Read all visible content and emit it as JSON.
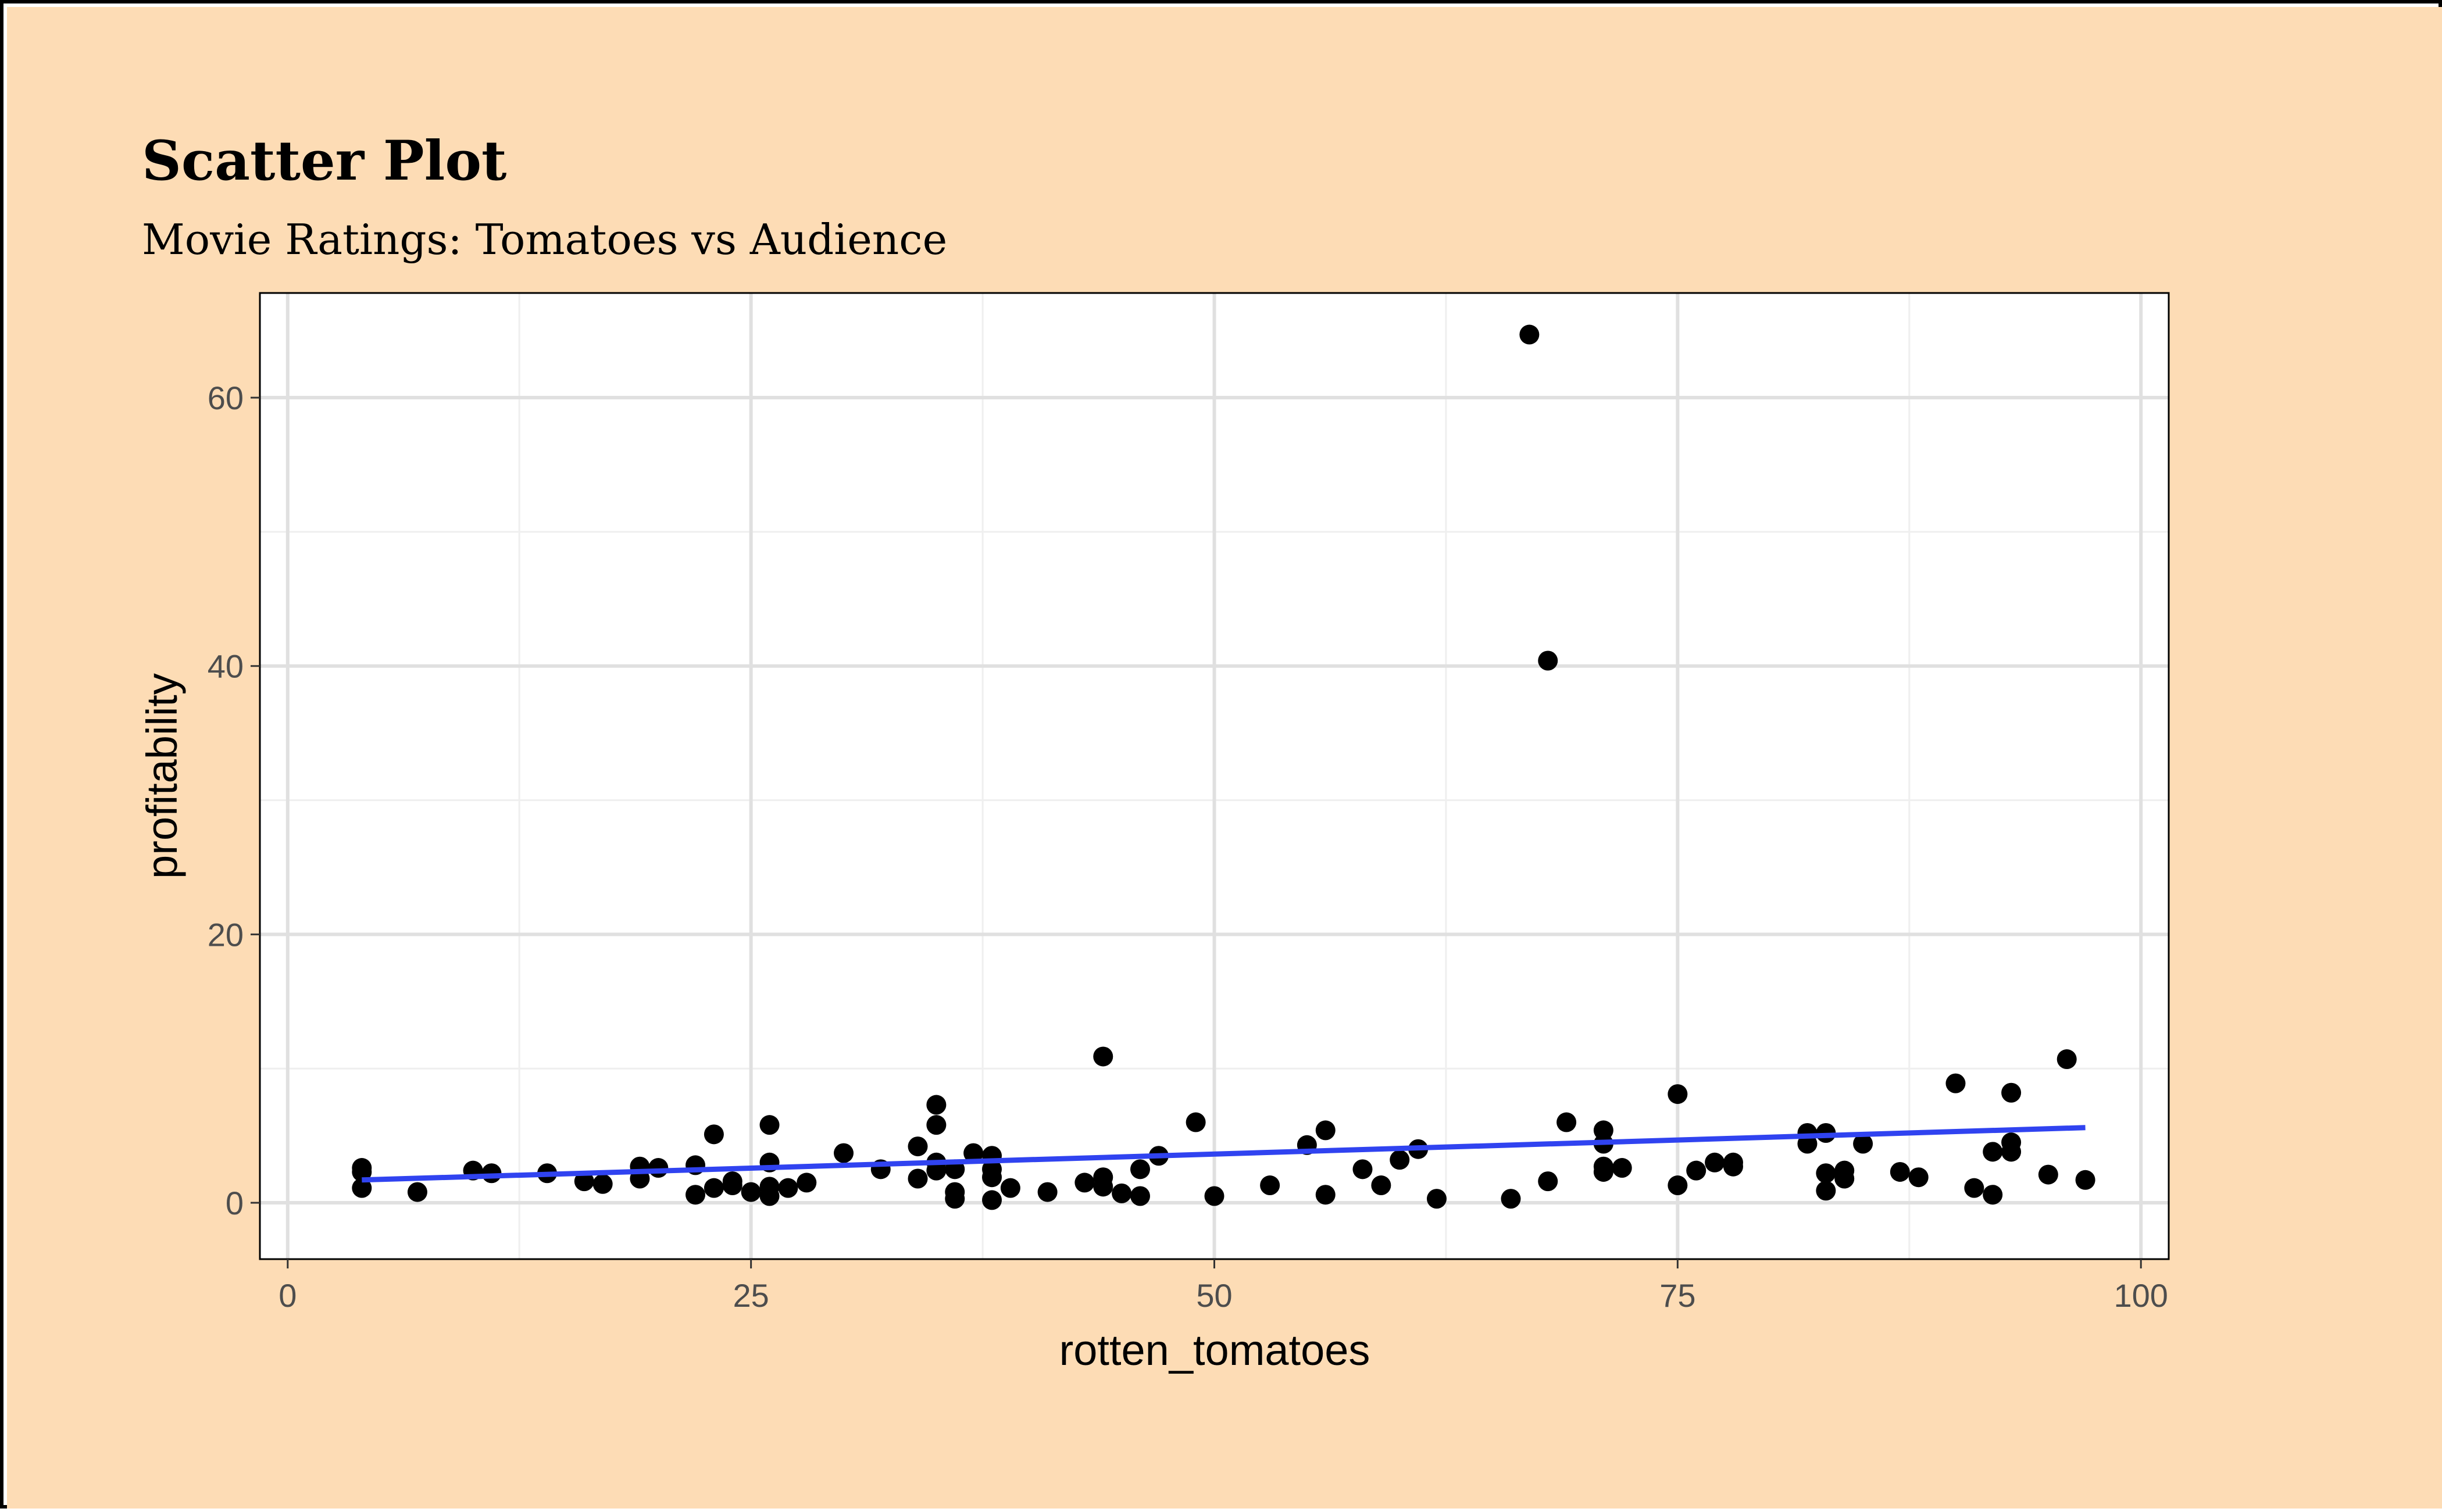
{
  "colors": {
    "background": "#FDDCB5",
    "panel": "#FFFFFF",
    "grid_major": "#E0E0E0",
    "grid_minor": "#EFEFEF",
    "points": "#000000",
    "trend_line": "#3043F0"
  },
  "chart_data": {
    "type": "scatter",
    "title": "Scatter Plot",
    "subtitle": "Movie Ratings: Tomatoes vs Audience",
    "xlabel": "rotten_tomatoes",
    "ylabel": "profitability",
    "xlim": [
      -1.5,
      101.5
    ],
    "ylim": [
      -4.2,
      67.8
    ],
    "x_ticks": [
      0,
      25,
      50,
      75,
      100
    ],
    "x_tick_labels": [
      "0",
      "25",
      "50",
      "75",
      "100"
    ],
    "y_ticks": [
      0,
      20,
      40,
      60
    ],
    "y_tick_labels": [
      "0",
      "20",
      "40",
      "60"
    ],
    "grid": true,
    "legend": "none",
    "trend_line": {
      "method": "linear",
      "x": [
        4,
        97
      ],
      "y": [
        1.7,
        5.6
      ]
    },
    "points": [
      [
        4,
        2.6
      ],
      [
        4,
        2.3
      ],
      [
        4,
        1.1
      ],
      [
        7,
        0.8
      ],
      [
        10,
        2.4
      ],
      [
        11,
        2.2
      ],
      [
        14,
        2.2
      ],
      [
        16,
        1.6
      ],
      [
        17,
        1.4
      ],
      [
        19,
        2.7
      ],
      [
        19,
        1.8
      ],
      [
        20,
        2.6
      ],
      [
        22,
        2.8
      ],
      [
        22,
        0.6
      ],
      [
        23,
        5.1
      ],
      [
        23,
        1.1
      ],
      [
        24,
        1.6
      ],
      [
        24,
        1.3
      ],
      [
        25,
        0.8
      ],
      [
        26,
        5.8
      ],
      [
        26,
        3.0
      ],
      [
        26,
        1.2
      ],
      [
        26,
        0.5
      ],
      [
        27,
        1.1
      ],
      [
        28,
        1.5
      ],
      [
        30,
        3.7
      ],
      [
        32,
        2.5
      ],
      [
        34,
        4.2
      ],
      [
        34,
        1.8
      ],
      [
        35,
        7.3
      ],
      [
        35,
        5.8
      ],
      [
        35,
        3.0
      ],
      [
        35,
        2.4
      ],
      [
        36,
        2.5
      ],
      [
        36,
        0.8
      ],
      [
        36,
        0.3
      ],
      [
        37,
        3.7
      ],
      [
        38,
        3.5
      ],
      [
        38,
        2.5
      ],
      [
        38,
        1.9
      ],
      [
        38,
        0.2
      ],
      [
        39,
        1.1
      ],
      [
        41,
        0.8
      ],
      [
        43,
        1.5
      ],
      [
        44,
        10.9
      ],
      [
        44,
        1.9
      ],
      [
        44,
        1.2
      ],
      [
        45,
        0.7
      ],
      [
        46,
        2.5
      ],
      [
        46,
        0.5
      ],
      [
        47,
        3.5
      ],
      [
        49,
        6.0
      ],
      [
        50,
        0.5
      ],
      [
        53,
        1.3
      ],
      [
        55,
        4.3
      ],
      [
        56,
        5.4
      ],
      [
        56,
        0.6
      ],
      [
        58,
        2.5
      ],
      [
        59,
        1.3
      ],
      [
        60,
        3.2
      ],
      [
        61,
        4.0
      ],
      [
        62,
        0.3
      ],
      [
        66,
        0.3
      ],
      [
        67,
        64.7
      ],
      [
        68,
        40.4
      ],
      [
        68,
        1.6
      ],
      [
        69,
        6.0
      ],
      [
        71,
        5.4
      ],
      [
        71,
        4.4
      ],
      [
        71,
        2.7
      ],
      [
        71,
        2.3
      ],
      [
        72,
        2.6
      ],
      [
        75,
        8.1
      ],
      [
        75,
        1.3
      ],
      [
        76,
        2.4
      ],
      [
        77,
        3.0
      ],
      [
        78,
        3.0
      ],
      [
        78,
        2.7
      ],
      [
        82,
        5.2
      ],
      [
        82,
        4.4
      ],
      [
        83,
        5.2
      ],
      [
        83,
        2.2
      ],
      [
        83,
        0.9
      ],
      [
        84,
        2.4
      ],
      [
        84,
        1.8
      ],
      [
        85,
        4.4
      ],
      [
        87,
        2.3
      ],
      [
        88,
        1.9
      ],
      [
        90,
        8.9
      ],
      [
        91,
        1.1
      ],
      [
        92,
        3.8
      ],
      [
        92,
        0.6
      ],
      [
        93,
        8.2
      ],
      [
        93,
        4.5
      ],
      [
        93,
        3.8
      ],
      [
        95,
        2.1
      ],
      [
        96,
        10.7
      ],
      [
        97,
        1.7
      ]
    ]
  }
}
